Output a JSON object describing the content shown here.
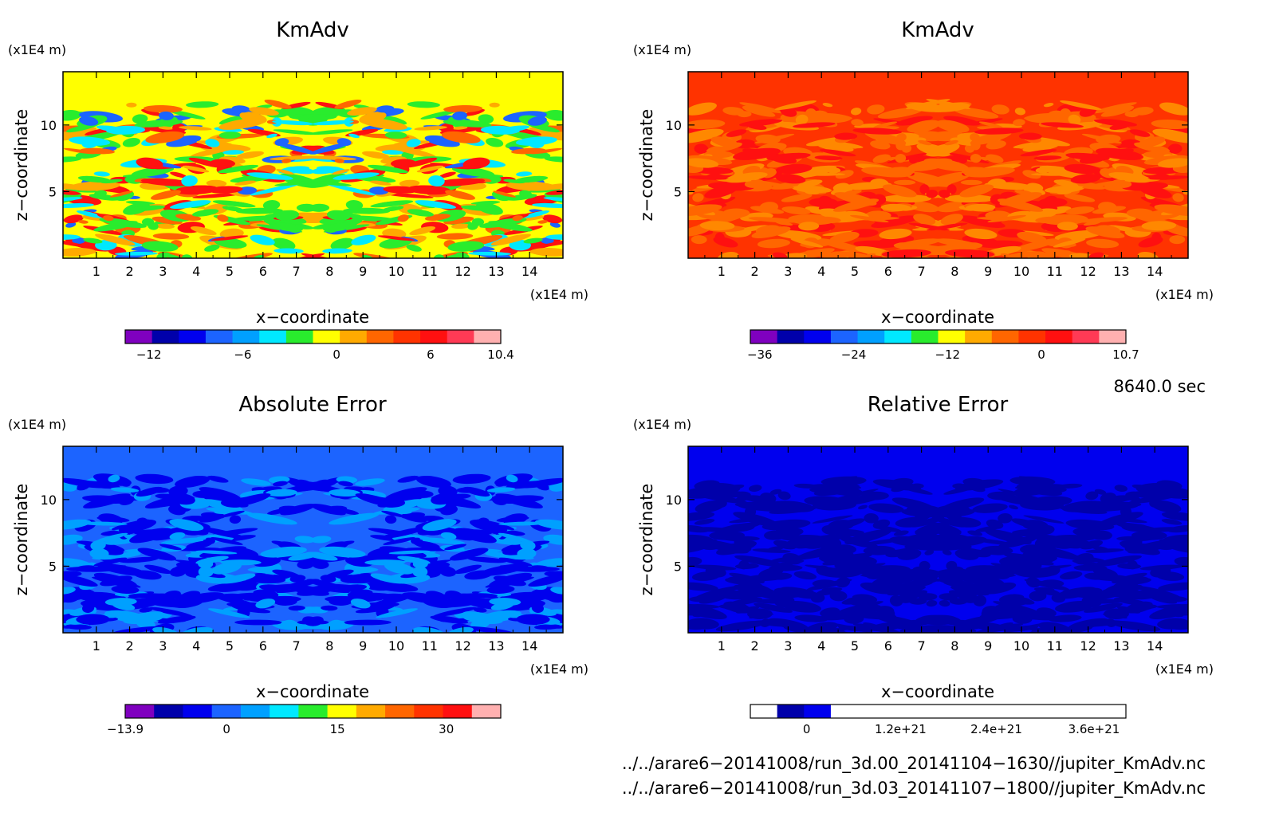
{
  "chart_data": [
    {
      "type": "heatmap",
      "title": "KmAdv",
      "xlabel": "x−coordinate",
      "ylabel": "z−coordinate",
      "x_unit": "(x1E4 m)",
      "y_unit": "(x1E4 m)",
      "xlim": [
        0,
        15
      ],
      "ylim": [
        0,
        14
      ],
      "x_ticks": [
        "1",
        "2",
        "3",
        "4",
        "5",
        "6",
        "7",
        "8",
        "9",
        "10",
        "11",
        "12",
        "13",
        "14"
      ],
      "y_ticks": [
        "5",
        "10"
      ],
      "colorbar": {
        "colors": [
          "#7f00bf",
          "#0000aa",
          "#0000ee",
          "#1c64ff",
          "#00a0ff",
          "#00e8ff",
          "#29ec2d",
          "#ffff00",
          "#ffaa00",
          "#ff6600",
          "#ff3300",
          "#ff1010",
          "#ff3a55",
          "#ffb0b0"
        ],
        "tick_labels": [
          "−12",
          "−6",
          "0",
          "6",
          "10.4"
        ]
      },
      "field": {
        "base": "#ffff00",
        "top_band": "#ffff00",
        "patches": [
          "#29ec2d",
          "#29ec2d",
          "#00e8ff",
          "#1c64ff",
          "#ffaa00",
          "#ff6600",
          "#ff1010"
        ]
      }
    },
    {
      "type": "heatmap",
      "title": "KmAdv",
      "xlabel": "x−coordinate",
      "ylabel": "z−coordinate",
      "x_unit": "(x1E4 m)",
      "y_unit": "(x1E4 m)",
      "xlim": [
        0,
        15
      ],
      "ylim": [
        0,
        14
      ],
      "x_ticks": [
        "1",
        "2",
        "3",
        "4",
        "5",
        "6",
        "7",
        "8",
        "9",
        "10",
        "11",
        "12",
        "13",
        "14"
      ],
      "y_ticks": [
        "5",
        "10"
      ],
      "colorbar": {
        "colors": [
          "#7f00bf",
          "#0000aa",
          "#0000ee",
          "#1c64ff",
          "#00a0ff",
          "#00e8ff",
          "#29ec2d",
          "#ffff00",
          "#ffaa00",
          "#ff6600",
          "#ff3300",
          "#ff1010",
          "#ff3a55",
          "#ffb0b0"
        ],
        "tick_labels": [
          "−36",
          "−24",
          "−12",
          "0",
          "10.7"
        ]
      },
      "field": {
        "base": "#ff3300",
        "top_band": "#ff3300",
        "patches": [
          "#ff6600",
          "#ff6600",
          "#ff8800",
          "#ff1010"
        ]
      }
    },
    {
      "type": "heatmap",
      "title": "Absolute Error",
      "xlabel": "x−coordinate",
      "ylabel": "z−coordinate",
      "x_unit": "(x1E4 m)",
      "y_unit": "(x1E4 m)",
      "xlim": [
        0,
        15
      ],
      "ylim": [
        0,
        14
      ],
      "x_ticks": [
        "1",
        "2",
        "3",
        "4",
        "5",
        "6",
        "7",
        "8",
        "9",
        "10",
        "11",
        "12",
        "13",
        "14"
      ],
      "y_ticks": [
        "5",
        "10"
      ],
      "colorbar": {
        "colors": [
          "#7f00bf",
          "#0000aa",
          "#0000ee",
          "#1c64ff",
          "#00a0ff",
          "#00e8ff",
          "#29ec2d",
          "#ffff00",
          "#ffaa00",
          "#ff6600",
          "#ff3300",
          "#ff1010",
          "#ffb0b0"
        ],
        "tick_labels": [
          "−13.9",
          "0",
          "15",
          "30"
        ]
      },
      "field": {
        "base": "#1c64ff",
        "top_band": "#1c64ff",
        "patches": [
          "#0000ee",
          "#0000ee",
          "#00a0ff"
        ]
      }
    },
    {
      "type": "heatmap",
      "title": "Relative Error",
      "xlabel": "x−coordinate",
      "ylabel": "z−coordinate",
      "x_unit": "(x1E4 m)",
      "y_unit": "(x1E4 m)",
      "xlim": [
        0,
        15
      ],
      "ylim": [
        0,
        14
      ],
      "x_ticks": [
        "1",
        "2",
        "3",
        "4",
        "5",
        "6",
        "7",
        "8",
        "9",
        "10",
        "11",
        "12",
        "13",
        "14"
      ],
      "y_ticks": [
        "5",
        "10"
      ],
      "colorbar": {
        "colors": [
          "#ffffff",
          "#0000aa",
          "#0000ee",
          "#ffffff",
          "#ffffff",
          "#ffffff",
          "#ffffff",
          "#ffffff",
          "#ffffff",
          "#ffffff",
          "#ffffff",
          "#ffffff",
          "#ffffff",
          "#ffffff"
        ],
        "tick_labels": [
          "0",
          "1.2e+21",
          "2.4e+21",
          "3.6e+21"
        ]
      },
      "field": {
        "base": "#0000ee",
        "top_band": "#0000ee",
        "patches": [
          "#0000aa",
          "#0000aa"
        ]
      }
    }
  ],
  "footer": {
    "time": "8640.0 sec",
    "file1": "../../arare6−20141008/run_3d.00_20141104−1630//jupiter_KmAdv.nc",
    "file2": "../../arare6−20141008/run_3d.03_20141107−1800//jupiter_KmAdv.nc"
  }
}
